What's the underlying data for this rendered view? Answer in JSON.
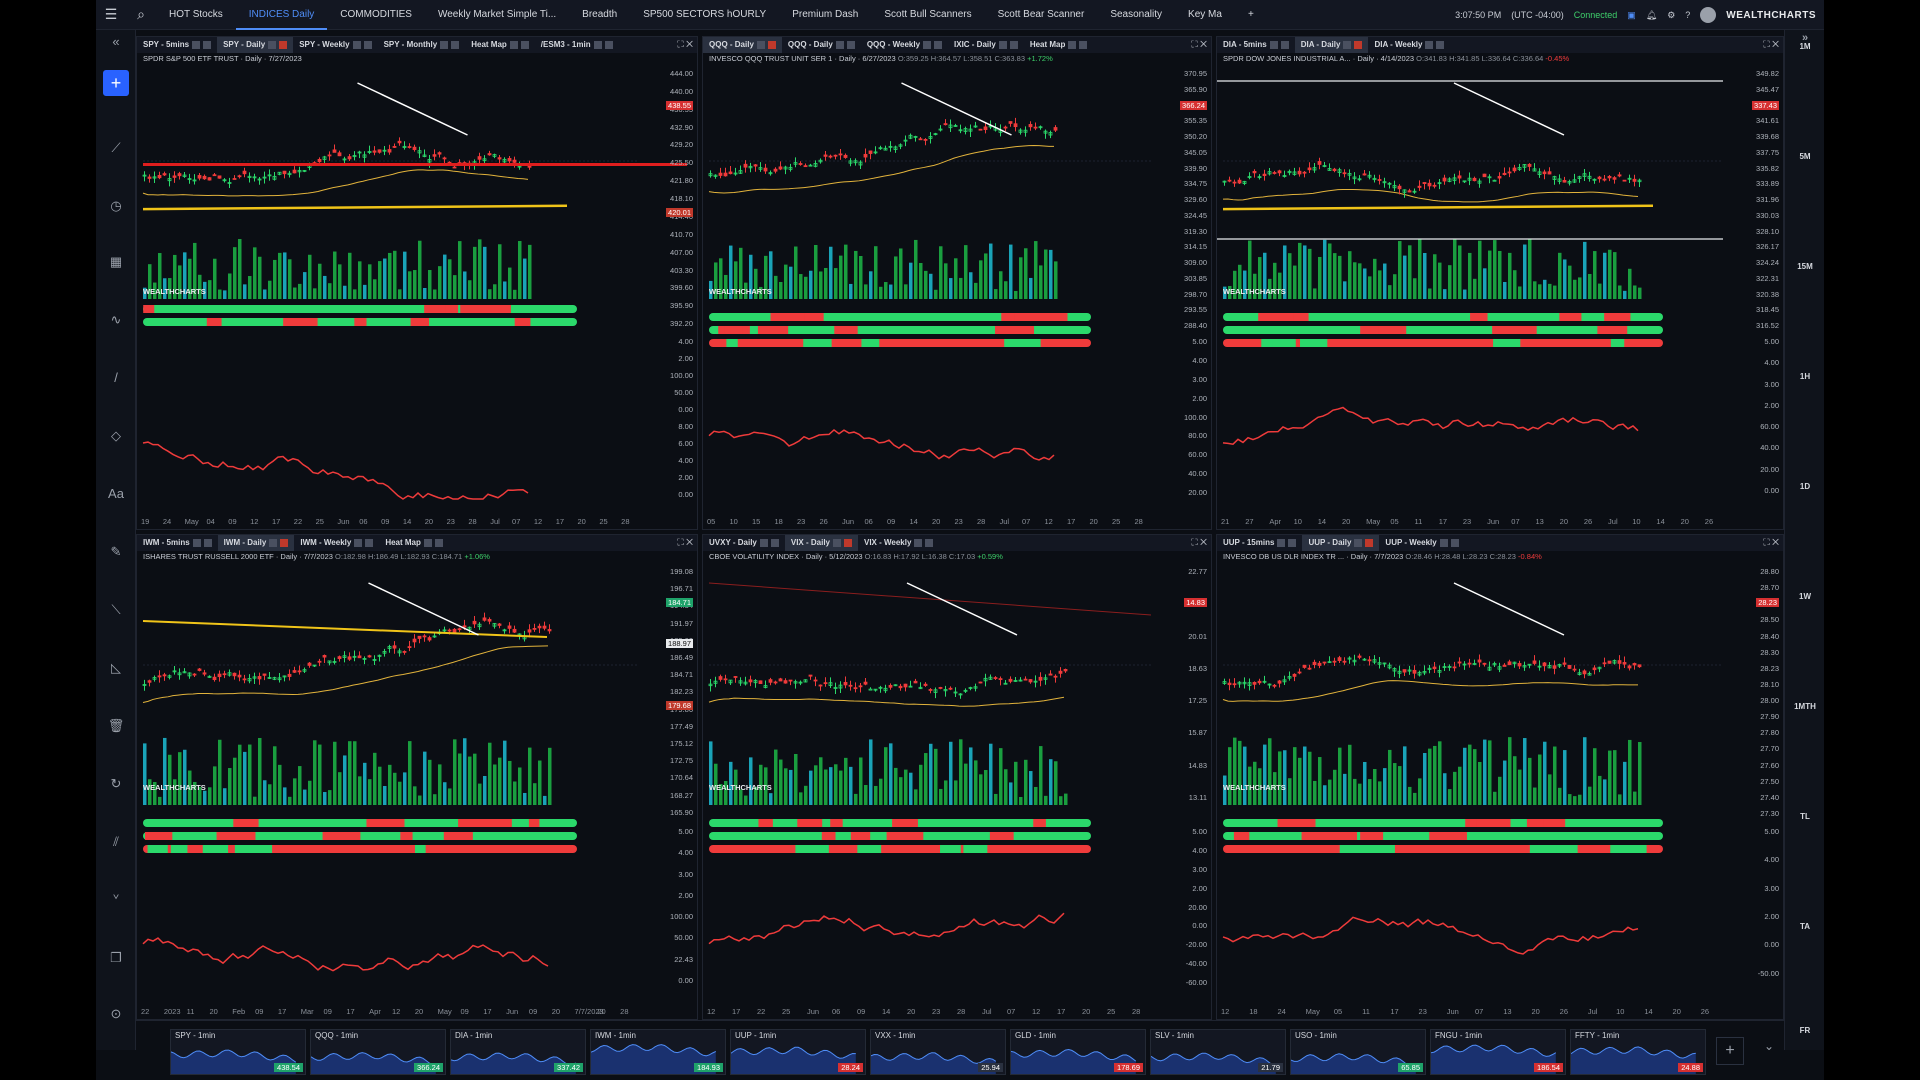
{
  "topbar": {
    "tabs": [
      {
        "label": "HOT Stocks",
        "active": false
      },
      {
        "label": "INDICES Daily",
        "active": true
      },
      {
        "label": "COMMODITIES",
        "active": false
      },
      {
        "label": "Weekly Market Simple Ti...",
        "active": false
      },
      {
        "label": "Breadth",
        "active": false
      },
      {
        "label": "SP500 SECTORS hOURLY",
        "active": false
      },
      {
        "label": "Premium Dash",
        "active": false
      },
      {
        "label": "Scott Bull Scanners",
        "active": false
      },
      {
        "label": "Scott Bear Scanner",
        "active": false
      },
      {
        "label": "Seasonality",
        "active": false
      },
      {
        "label": "Key Ma",
        "active": false
      }
    ],
    "add_tab": "+",
    "time": "3:07:50 PM",
    "timezone": "(UTC -04:00)",
    "status": "Connected",
    "brand": "WEALTHCHARTS"
  },
  "interval_bar": [
    "1M",
    "5M",
    "15M",
    "1H",
    "1D",
    "1W",
    "1MTH",
    "TL",
    "TA",
    "FR"
  ],
  "panels": [
    {
      "tabs": [
        "SPY - 5mins",
        "SPY - Daily",
        "SPY - Weekly",
        "SPY - Monthly",
        "Heat Map",
        "/ESM3 - 1min"
      ],
      "active_tab": 1,
      "symbol": "SPDR S&P 500 ETF TRUST",
      "meta": " · Daily · 7/27/2023",
      "ohlc": "",
      "change": "",
      "y_labels": [
        "444.00",
        "440.00",
        "436.55",
        "432.90",
        "429.20",
        "425.50",
        "421.80",
        "418.10",
        "414.40",
        "410.70",
        "407.00",
        "403.30",
        "399.60",
        "395.90",
        "392.20"
      ],
      "price_tag": "438.55",
      "level_tag": "420.01",
      "osc_labels": [
        "4.00",
        "2.00",
        "100.00",
        "50.00",
        "0.00",
        "8.00",
        "6.00",
        "4.00",
        "2.00",
        "0.00"
      ],
      "x_labels": [
        "19",
        "24",
        "May",
        "04",
        "09",
        "12",
        "17",
        "22",
        "25",
        "Jun",
        "06",
        "09",
        "14",
        "20",
        "23",
        "28",
        "Jul",
        "07",
        "12",
        "17",
        "20",
        "25",
        "28"
      ]
    },
    {
      "tabs": [
        "QQQ - Daily",
        "QQQ - Daily",
        "QQQ - Weekly",
        "IXIC - Daily",
        "Heat Map"
      ],
      "active_tab": 0,
      "symbol": "INVESCO QQQ TRUST UNIT SER 1",
      "meta": " · Daily · 6/27/2023 ",
      "ohlc": "O:359.25 H:364.57 L:358.51 C:363.83",
      "change": "+1.72%",
      "y_labels": [
        "370.95",
        "365.90",
        "360.85",
        "355.35",
        "350.20",
        "345.05",
        "339.90",
        "334.75",
        "329.60",
        "324.45",
        "319.30",
        "314.15",
        "309.00",
        "303.85",
        "298.70",
        "293.55",
        "288.40"
      ],
      "price_tag": "366.24",
      "osc_labels": [
        "5.00",
        "4.00",
        "3.00",
        "2.00",
        "100.00",
        "80.00",
        "60.00",
        "40.00",
        "20.00"
      ],
      "x_labels": [
        "05",
        "10",
        "15",
        "18",
        "23",
        "26",
        "Jun",
        "06",
        "09",
        "14",
        "20",
        "23",
        "28",
        "Jul",
        "07",
        "12",
        "17",
        "20",
        "25",
        "28"
      ]
    },
    {
      "tabs": [
        "DIA - 5mins",
        "DIA - Daily",
        "DIA - Weekly"
      ],
      "active_tab": 1,
      "symbol": "SPDR DOW JONES INDUSTRIAL A...",
      "meta": " · Daily · 4/14/2023 ",
      "ohlc": "O:341.83 H:341.85 L:336.64 C:336.64",
      "change": "-0.45%",
      "y_labels": [
        "349.82",
        "345.47",
        "343.54",
        "341.61",
        "339.68",
        "337.75",
        "335.82",
        "333.89",
        "331.96",
        "330.03",
        "328.10",
        "326.17",
        "324.24",
        "322.31",
        "320.38",
        "318.45",
        "316.52"
      ],
      "price_tag": "337.43",
      "osc_labels": [
        "5.00",
        "4.00",
        "3.00",
        "2.00",
        "60.00",
        "40.00",
        "20.00",
        "0.00"
      ],
      "x_labels": [
        "21",
        "27",
        "Apr",
        "10",
        "14",
        "20",
        "May",
        "05",
        "11",
        "17",
        "23",
        "Jun",
        "07",
        "13",
        "20",
        "26",
        "Jul",
        "10",
        "14",
        "20",
        "26"
      ]
    },
    {
      "tabs": [
        "IWM - 5mins",
        "IWM - Daily",
        "IWM - Weekly",
        "Heat Map"
      ],
      "active_tab": 1,
      "symbol": "ISHARES TRUST RUSSELL 2000 ETF",
      "meta": " · Daily · 7/7/2023 ",
      "ohlc": "O:182.98 H:186.49 L:182.93 C:184.71",
      "change": "+1.06%",
      "y_labels": [
        "199.08",
        "196.71",
        "194.34",
        "191.97",
        "189.60",
        "186.49",
        "184.71",
        "182.23",
        "179.86",
        "177.49",
        "175.12",
        "172.75",
        "170.64",
        "168.27",
        "165.90"
      ],
      "price_tag": "184.71",
      "cursor_tag": "188.97",
      "level_tag": "179.68",
      "osc_labels": [
        "5.00",
        "4.00",
        "3.00",
        "2.00",
        "100.00",
        "50.00",
        "22.43",
        "0.00"
      ],
      "x_labels": [
        "22",
        "2023",
        "11",
        "20",
        "Feb",
        "09",
        "17",
        "Mar",
        "09",
        "17",
        "Apr",
        "12",
        "20",
        "May",
        "09",
        "17",
        "Jun",
        "09",
        "20",
        "7/7/2023",
        "20",
        "28"
      ]
    },
    {
      "tabs": [
        "UVXY - Daily",
        "VIX - Daily",
        "VIX - Weekly"
      ],
      "active_tab": 1,
      "symbol": "CBOE VOLATILITY INDEX",
      "meta": " · Daily · 5/12/2023 ",
      "ohlc": "O:16.83 H:17.92 L:16.38 C:17.03",
      "change": "+0.59%",
      "y_labels": [
        "22.77",
        "21.39",
        "20.01",
        "18.63",
        "17.25",
        "15.87",
        "14.83",
        "13.11"
      ],
      "price_tag": "14.83",
      "osc_labels": [
        "5.00",
        "4.00",
        "3.00",
        "2.00",
        "20.00",
        "0.00",
        "-20.00",
        "-40.00",
        "-60.00"
      ],
      "x_labels": [
        "12",
        "17",
        "22",
        "25",
        "Jun",
        "06",
        "09",
        "14",
        "20",
        "23",
        "28",
        "Jul",
        "07",
        "12",
        "17",
        "20",
        "25",
        "28"
      ]
    },
    {
      "tabs": [
        "UUP - 15mins",
        "UUP - Daily",
        "UUP - Weekly"
      ],
      "active_tab": 1,
      "symbol": "INVESCO DB US DLR INDEX TR ...",
      "meta": " · Daily · 7/7/2023 ",
      "ohlc": "O:28.46 H:28.48 L:28.23 C:28.23",
      "change": "-0.84%",
      "y_labels": [
        "28.80",
        "28.70",
        "28.60",
        "28.50",
        "28.40",
        "28.30",
        "28.23",
        "28.10",
        "28.00",
        "27.90",
        "27.80",
        "27.70",
        "27.60",
        "27.50",
        "27.40",
        "27.30"
      ],
      "price_tag": "28.23",
      "osc_labels": [
        "5.00",
        "4.00",
        "3.00",
        "2.00",
        "0.00",
        "-50.00"
      ],
      "x_labels": [
        "12",
        "18",
        "24",
        "May",
        "05",
        "11",
        "17",
        "23",
        "Jun",
        "07",
        "13",
        "20",
        "26",
        "Jul",
        "10",
        "14",
        "20",
        "26"
      ]
    }
  ],
  "watchlist": [
    {
      "label": "SPY - 1min",
      "value": "438.54",
      "color": "#1fa36a"
    },
    {
      "label": "QQQ - 1min",
      "value": "366.24",
      "color": "#1fa36a"
    },
    {
      "label": "DIA - 1min",
      "value": "337.42",
      "color": "#1fa36a"
    },
    {
      "label": "IWM - 1min",
      "value": "184.93",
      "color": "#1fa36a"
    },
    {
      "label": "UUP - 1min",
      "value": "28.24",
      "color": "#d63031"
    },
    {
      "label": "VXX - 1min",
      "value": "25.94",
      "color": "#2a3140"
    },
    {
      "label": "GLD - 1min",
      "value": "178.69",
      "color": "#d63031"
    },
    {
      "label": "SLV - 1min",
      "value": "21.79",
      "color": "#2a3140"
    },
    {
      "label": "USO - 1min",
      "value": "65.85",
      "color": "#1fa36a"
    },
    {
      "label": "FNGU - 1min",
      "value": "186.54",
      "color": "#d63031"
    },
    {
      "label": "FFTY - 1min",
      "value": "24.88",
      "color": "#d63031"
    }
  ],
  "colors": {
    "up": "#2bd96b",
    "down": "#ef3b3b",
    "volume_up": "#1a9e3f",
    "volume_alt": "#1aa3b8",
    "ma": "#e2b33c",
    "accent": "#2962ff"
  }
}
